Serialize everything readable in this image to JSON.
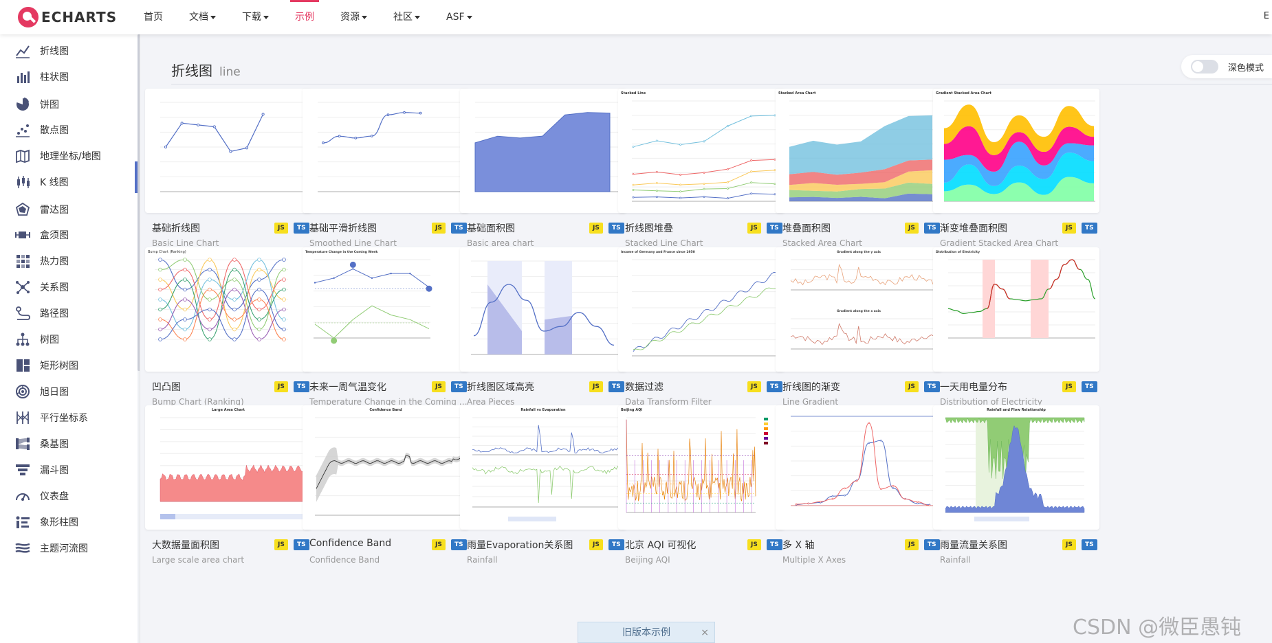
{
  "header": {
    "logo_text": "ECHARTS",
    "nav": [
      {
        "label": "首页",
        "dropdown": false,
        "active": false
      },
      {
        "label": "文档",
        "dropdown": true,
        "active": false
      },
      {
        "label": "下载",
        "dropdown": true,
        "active": false
      },
      {
        "label": "示例",
        "dropdown": false,
        "active": true
      },
      {
        "label": "资源",
        "dropdown": true,
        "active": false
      },
      {
        "label": "社区",
        "dropdown": true,
        "active": false
      },
      {
        "label": "ASF",
        "dropdown": true,
        "active": false
      }
    ],
    "right_text": "E"
  },
  "sidebar": {
    "items": [
      {
        "label": "折线图",
        "icon": "line-chart-icon"
      },
      {
        "label": "柱状图",
        "icon": "bar-chart-icon"
      },
      {
        "label": "饼图",
        "icon": "pie-chart-icon"
      },
      {
        "label": "散点图",
        "icon": "scatter-chart-icon"
      },
      {
        "label": "地理坐标/地图",
        "icon": "map-icon"
      },
      {
        "label": "K 线图",
        "icon": "candlestick-icon"
      },
      {
        "label": "雷达图",
        "icon": "radar-icon"
      },
      {
        "label": "盒须图",
        "icon": "boxplot-icon"
      },
      {
        "label": "热力图",
        "icon": "heatmap-icon"
      },
      {
        "label": "关系图",
        "icon": "graph-icon"
      },
      {
        "label": "路径图",
        "icon": "lines-icon"
      },
      {
        "label": "树图",
        "icon": "tree-icon"
      },
      {
        "label": "矩形树图",
        "icon": "treemap-icon"
      },
      {
        "label": "旭日图",
        "icon": "sunburst-icon"
      },
      {
        "label": "平行坐标系",
        "icon": "parallel-icon"
      },
      {
        "label": "桑基图",
        "icon": "sankey-icon"
      },
      {
        "label": "漏斗图",
        "icon": "funnel-icon"
      },
      {
        "label": "仪表盘",
        "icon": "gauge-icon"
      },
      {
        "label": "象形柱图",
        "icon": "pictorial-bar-icon"
      },
      {
        "label": "主题河流图",
        "icon": "theme-river-icon"
      }
    ],
    "selected_index": 3
  },
  "main": {
    "title": "折线图",
    "subtitle": "line",
    "dark_mode_label": "深色模式",
    "dark_mode_on": false
  },
  "examples": [
    {
      "title": "基础折线图",
      "subtitle": "Basic Line Chart",
      "thumb": "basic-line"
    },
    {
      "title": "基础平滑折线图",
      "subtitle": "Smoothed Line Chart",
      "thumb": "smooth-line"
    },
    {
      "title": "基础面积图",
      "subtitle": "Basic area chart",
      "thumb": "basic-area"
    },
    {
      "title": "折线图堆叠",
      "subtitle": "Stacked Line Chart",
      "thumb": "stacked-line"
    },
    {
      "title": "堆叠面积图",
      "subtitle": "Stacked Area Chart",
      "thumb": "stacked-area"
    },
    {
      "title": "渐变堆叠面积图",
      "subtitle": "Gradient Stacked Area Chart",
      "thumb": "gradient-stacked"
    },
    {
      "title": "凹凸图",
      "subtitle": "Bump Chart (Ranking)",
      "thumb": "bump"
    },
    {
      "title": "未来一周气温变化",
      "subtitle": "Temperature Change in the Coming Week",
      "thumb": "temperature"
    },
    {
      "title": "折线图区域高亮",
      "subtitle": "Area Pieces",
      "thumb": "area-pieces"
    },
    {
      "title": "数据过滤",
      "subtitle": "Data Transform Filter",
      "thumb": "data-filter"
    },
    {
      "title": "折线图的渐变",
      "subtitle": "Line Gradient",
      "thumb": "line-gradient"
    },
    {
      "title": "一天用电量分布",
      "subtitle": "Distribution of Electricity",
      "thumb": "electricity"
    },
    {
      "title": "大数据量面积图",
      "subtitle": "Large scale area chart",
      "thumb": "large-area"
    },
    {
      "title": "Confidence Band",
      "subtitle": "Confidence Band",
      "thumb": "confidence"
    },
    {
      "title": "雨量Evaporation关系图",
      "subtitle": "Rainfall",
      "thumb": "rainfall-evaporation"
    },
    {
      "title": "北京 AQI 可视化",
      "subtitle": "Beijing AQI",
      "thumb": "aqi"
    },
    {
      "title": "多 X 轴",
      "subtitle": "Multiple X Axes",
      "thumb": "multi-x"
    },
    {
      "title": "雨量流量关系图",
      "subtitle": "Rainfall",
      "thumb": "rainfall-flow"
    }
  ],
  "badges": {
    "js": "JS",
    "ts": "TS"
  },
  "thumb_texts": {
    "stacked_line": "Stacked Line",
    "stacked_area": "Stacked Area Chart",
    "gradient_stacked": "Gradient Stacked Area Chart",
    "bump": "Bump Chart (Ranking)",
    "temperature": "Temperature Change in the Coming Week",
    "data_filter": "Income of Germany and France since 1950",
    "line_gradient_y": "Gradient along the y axis",
    "line_gradient_x": "Gradient along the x axis",
    "electricity": "Distribution of Electricity",
    "large_area": "Large Area Chart",
    "confidence": "Confidence Band",
    "rainfall_evaporation": "Rainfall vs Evaporation",
    "aqi": "Beijing AQI",
    "rainfall_flow": "Rainfall and Flow Relationship"
  },
  "old_version": {
    "label": "旧版本示例",
    "close": "×"
  },
  "watermark": "CSDN @微臣愚钝",
  "colors": {
    "accent": "#e43961",
    "primary": "#5470c6",
    "sidebar_icon": "#4a5277"
  }
}
